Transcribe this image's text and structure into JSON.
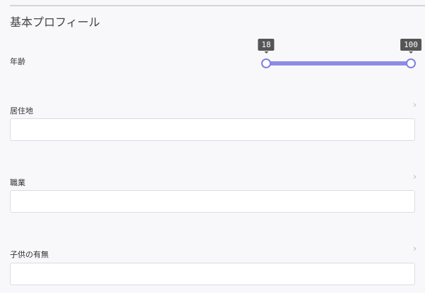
{
  "section": {
    "title": "基本プロフィール"
  },
  "age": {
    "label": "年齢",
    "min": 18,
    "max": 100,
    "min_label": "18",
    "max_label": "100",
    "accent": "#8c8ce6"
  },
  "fields": [
    {
      "label": "居住地",
      "value": ""
    },
    {
      "label": "職業",
      "value": ""
    },
    {
      "label": "子供の有無",
      "value": ""
    }
  ],
  "icons": {
    "chevron": "chevron-right-icon"
  }
}
